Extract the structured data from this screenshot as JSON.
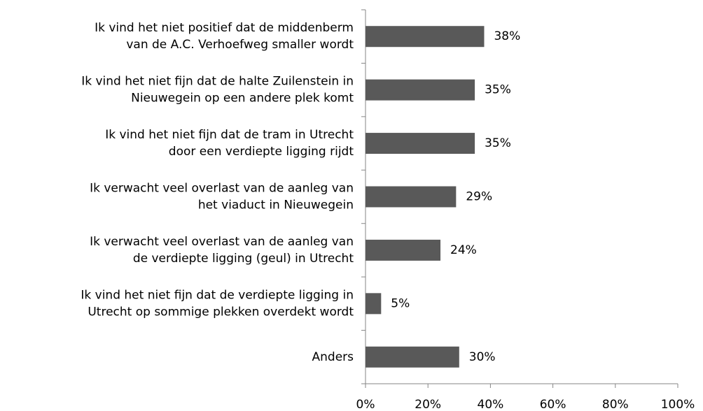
{
  "chart_data": {
    "type": "bar",
    "orientation": "horizontal",
    "categories": [
      "Ik vind het niet positief dat de middenberm\nvan de A.C. Verhoefweg smaller wordt",
      "Ik vind het niet fijn dat de halte Zuilenstein in\nNieuwegein op een andere plek komt",
      "Ik vind het niet fijn dat de tram in Utrecht\ndoor een verdiepte ligging rijdt",
      "Ik verwacht veel overlast van de aanleg van\nhet viaduct in Nieuwegein",
      "Ik verwacht veel overlast van de aanleg van\nde verdiepte ligging (geul) in Utrecht",
      "Ik vind het niet fijn dat de verdiepte ligging in\nUtrecht op sommige plekken overdekt wordt",
      "Anders"
    ],
    "values": [
      38,
      35,
      35,
      29,
      24,
      5,
      30
    ],
    "value_labels": [
      "38%",
      "35%",
      "35%",
      "29%",
      "24%",
      "5%",
      "30%"
    ],
    "color": "#595959",
    "xlim": [
      0,
      100
    ],
    "xticks": [
      {
        "value": 0,
        "label": "0%"
      },
      {
        "value": 20,
        "label": "20%"
      },
      {
        "value": 40,
        "label": "40%"
      },
      {
        "value": 60,
        "label": "60%"
      },
      {
        "value": 80,
        "label": "80%"
      },
      {
        "value": 100,
        "label": "100%"
      }
    ],
    "grid": false
  }
}
